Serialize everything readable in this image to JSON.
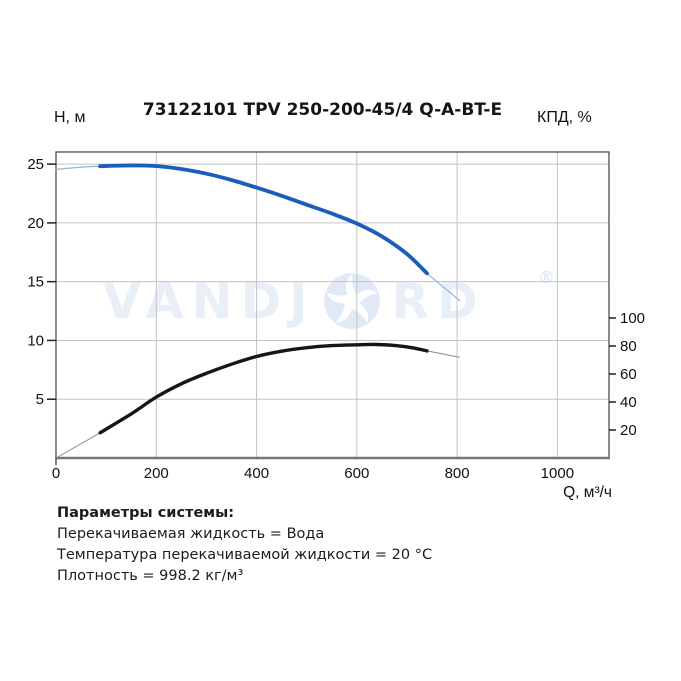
{
  "page": {
    "background": "#ffffff"
  },
  "header": {
    "title": "73122101 TPV 250-200-45/4 Q-A-BT-E",
    "left_axis_title": "Н, м",
    "right_axis_title": "КПД, %",
    "x_axis_title": "Q, м³/ч"
  },
  "watermark": {
    "brand": "VANDJORD",
    "text_left": "VANDJ",
    "text_right": "RD",
    "registered_mark": "®",
    "text_color": "#e8eff7",
    "impeller_color": "#dfeaf6"
  },
  "chart_data": {
    "type": "line",
    "title": "73122101 TPV 250-200-45/4 Q-A-BT-E",
    "grid": true,
    "x_axis": {
      "label": "Q, м³/ч",
      "ticks": [
        0,
        200,
        400,
        600,
        800,
        1000
      ],
      "range": [
        0,
        1103
      ]
    },
    "y_axis_left": {
      "label": "Н, м",
      "ticks": [
        5,
        10,
        15,
        20,
        25
      ],
      "range": [
        0,
        26.03
      ]
    },
    "y_axis_right": {
      "label": "КПД, %",
      "ticks": [
        20,
        40,
        60,
        80,
        100
      ],
      "range": [
        0,
        218.6
      ]
    },
    "colors": {
      "grid": "#c3c3c3",
      "border": "#4d4d4d",
      "axis_line": "#787878",
      "tick_text": "#111111"
    },
    "series": [
      {
        "name": "head-curve",
        "axis": "left",
        "unit": "м",
        "color": "#1a5dba",
        "thin_color": "#92b4de",
        "width": 3.8,
        "thin_width": 1.2,
        "lead": [
          [
            0,
            24.55
          ],
          [
            45,
            24.72
          ],
          [
            88,
            24.82
          ]
        ],
        "main": [
          [
            88,
            24.82
          ],
          [
            130,
            24.87
          ],
          [
            170,
            24.88
          ],
          [
            210,
            24.8
          ],
          [
            250,
            24.58
          ],
          [
            300,
            24.18
          ],
          [
            350,
            23.65
          ],
          [
            400,
            23.0
          ],
          [
            450,
            22.3
          ],
          [
            500,
            21.55
          ],
          [
            550,
            20.8
          ],
          [
            600,
            19.95
          ],
          [
            650,
            18.85
          ],
          [
            700,
            17.35
          ],
          [
            740,
            15.7
          ]
        ],
        "tail": [
          [
            740,
            15.7
          ],
          [
            805,
            13.4
          ]
        ]
      },
      {
        "name": "efficiency-curve",
        "axis": "right",
        "unit": "%",
        "color": "#161616",
        "thin_color": "#8c8c8c",
        "width": 3.4,
        "thin_width": 1.0,
        "lead": [
          [
            0,
            0
          ],
          [
            88,
            18
          ]
        ],
        "main": [
          [
            88,
            18
          ],
          [
            150,
            31.5
          ],
          [
            200,
            43.5
          ],
          [
            250,
            53
          ],
          [
            300,
            60.5
          ],
          [
            350,
            67
          ],
          [
            400,
            72.5
          ],
          [
            450,
            76.3
          ],
          [
            500,
            78.8
          ],
          [
            550,
            80.3
          ],
          [
            600,
            80.9
          ],
          [
            640,
            81.1
          ],
          [
            680,
            80.2
          ],
          [
            710,
            78.8
          ],
          [
            740,
            76.5
          ]
        ],
        "tail": [
          [
            740,
            76.5
          ],
          [
            805,
            72
          ]
        ]
      }
    ]
  },
  "footer": {
    "heading": "Параметры системы:",
    "lines": [
      "Перекачиваемая жидкость = Вода",
      "Температура перекачиваемой жидкости = 20 °C",
      "Плотность = 998.2 кг/м³"
    ]
  }
}
